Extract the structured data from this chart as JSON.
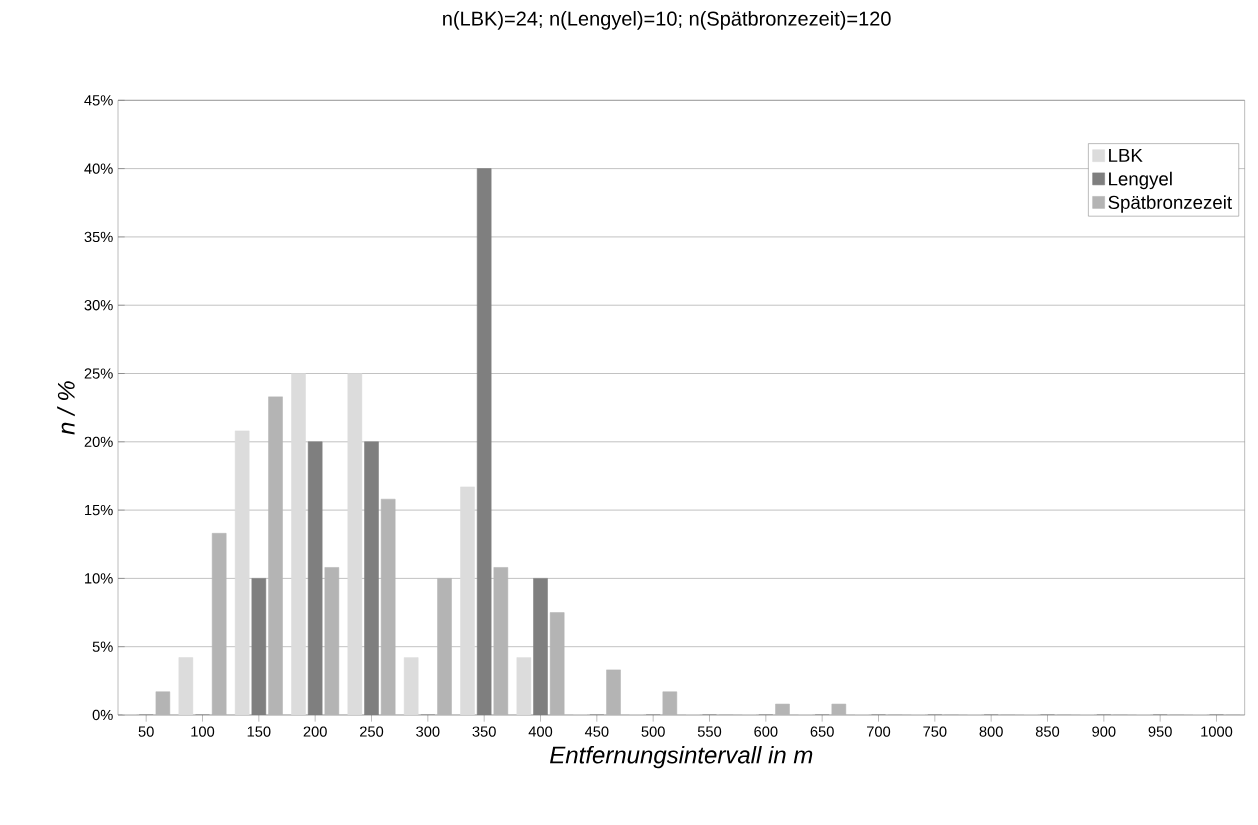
{
  "chart_data": {
    "type": "bar",
    "title": "n(LBK)=24; n(Lengyel)=10; n(Spätbronzezeit)=120",
    "xlabel": "Entfernungsintervall in m",
    "ylabel": "n / %",
    "categories": [
      "50",
      "100",
      "150",
      "200",
      "250",
      "300",
      "350",
      "400",
      "450",
      "500",
      "550",
      "600",
      "650",
      "700",
      "750",
      "800",
      "850",
      "900",
      "950",
      "1000"
    ],
    "series": [
      {
        "name": "LBK",
        "color": "#dcdcdc",
        "values": [
          0,
          4.2,
          20.8,
          25,
          25,
          4.2,
          16.7,
          4.2,
          0,
          0,
          0,
          0,
          0,
          0,
          0,
          0,
          0,
          0,
          0,
          0
        ]
      },
      {
        "name": "Lengyel",
        "color": "#7f7f7f",
        "values": [
          0,
          0,
          10,
          20,
          20,
          0,
          40,
          10,
          0,
          0,
          0,
          0,
          0,
          0,
          0,
          0,
          0,
          0,
          0,
          0
        ]
      },
      {
        "name": "Spätbronzezeit",
        "color": "#b4b4b4",
        "values": [
          1.7,
          13.3,
          23.3,
          10.8,
          15.8,
          10,
          10.8,
          7.5,
          3.3,
          1.7,
          0,
          0.8,
          0.8,
          0,
          0,
          0,
          0,
          0,
          0,
          0
        ]
      }
    ],
    "ylim": [
      0,
      45
    ],
    "yticks": [
      {
        "value": 0,
        "label": "0%"
      },
      {
        "value": 5,
        "label": "5%"
      },
      {
        "value": 10,
        "label": "10%"
      },
      {
        "value": 15,
        "label": "15%"
      },
      {
        "value": 20,
        "label": "20%"
      },
      {
        "value": 25,
        "label": "25%"
      },
      {
        "value": 30,
        "label": "30%"
      },
      {
        "value": 35,
        "label": "35%"
      },
      {
        "value": 40,
        "label": "40%"
      },
      {
        "value": 45,
        "label": "45%"
      }
    ],
    "grid": "y",
    "legend": "top right"
  }
}
